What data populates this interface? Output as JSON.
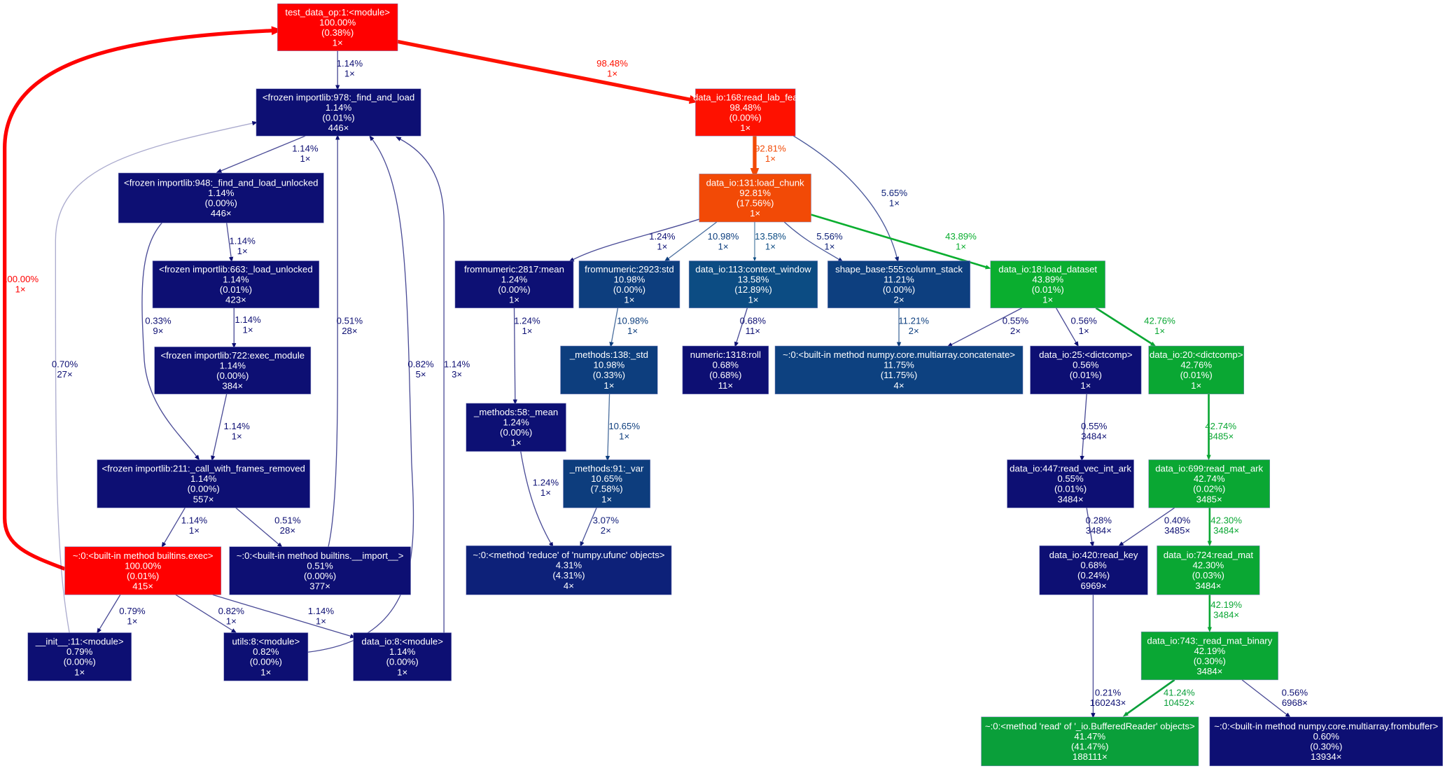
{
  "graph": {
    "nodes": [
      {
        "id": "n1",
        "label": "test_data_op:1:<module>",
        "total": "100.00%",
        "self": "(0.38%)",
        "calls": "1×",
        "color": "#ff0000"
      },
      {
        "id": "n2",
        "label": "<frozen importlib:978:_find_and_load",
        "total": "1.14%",
        "self": "(0.01%)",
        "calls": "446×",
        "color": "#0d0f73"
      },
      {
        "id": "n3",
        "label": "<frozen importlib:948:_find_and_load_unlocked",
        "total": "1.14%",
        "self": "(0.00%)",
        "calls": "446×",
        "color": "#0d0f73"
      },
      {
        "id": "n4",
        "label": "<frozen importlib:663:_load_unlocked",
        "total": "1.14%",
        "self": "(0.01%)",
        "calls": "423×",
        "color": "#0d0f73"
      },
      {
        "id": "n5",
        "label": "<frozen importlib:722:exec_module",
        "total": "1.14%",
        "self": "(0.00%)",
        "calls": "384×",
        "color": "#0d0f73"
      },
      {
        "id": "n6",
        "label": "<frozen importlib:211:_call_with_frames_removed",
        "total": "1.14%",
        "self": "(0.00%)",
        "calls": "557×",
        "color": "#0d0f73"
      },
      {
        "id": "n7",
        "label": "~:0:<built-in method builtins.exec>",
        "total": "100.00%",
        "self": "(0.01%)",
        "calls": "415×",
        "color": "#ff0000"
      },
      {
        "id": "n8",
        "label": "~:0:<built-in method builtins.__import__>",
        "total": "0.51%",
        "self": "(0.00%)",
        "calls": "377×",
        "color": "#0d0f73"
      },
      {
        "id": "n9",
        "label": "__init__:11:<module>",
        "total": "0.79%",
        "self": "(0.00%)",
        "calls": "1×",
        "color": "#0d0f73"
      },
      {
        "id": "n10",
        "label": "utils:8:<module>",
        "total": "0.82%",
        "self": "(0.00%)",
        "calls": "1×",
        "color": "#0d0f73"
      },
      {
        "id": "n11",
        "label": "data_io:8:<module>",
        "total": "1.14%",
        "self": "(0.00%)",
        "calls": "1×",
        "color": "#0d0f73"
      },
      {
        "id": "n12",
        "label": "data_io:168:read_lab_fea",
        "total": "98.48%",
        "self": "(0.00%)",
        "calls": "1×",
        "color": "#fe1100"
      },
      {
        "id": "n13",
        "label": "data_io:131:load_chunk",
        "total": "92.81%",
        "self": "(17.56%)",
        "calls": "1×",
        "color": "#f24a06"
      },
      {
        "id": "n14",
        "label": "fromnumeric:2817:mean",
        "total": "1.24%",
        "self": "(0.00%)",
        "calls": "1×",
        "color": "#0d1074"
      },
      {
        "id": "n15",
        "label": "fromnumeric:2923:std",
        "total": "10.98%",
        "self": "(0.00%)",
        "calls": "1×",
        "color": "#0d3e7e"
      },
      {
        "id": "n16",
        "label": "data_io:113:context_window",
        "total": "13.58%",
        "self": "(12.89%)",
        "calls": "1×",
        "color": "#0c4c83"
      },
      {
        "id": "n17",
        "label": "shape_base:555:column_stack",
        "total": "11.21%",
        "self": "(0.00%)",
        "calls": "2×",
        "color": "#0d3f7f"
      },
      {
        "id": "n18",
        "label": "data_io:18:load_dataset",
        "total": "43.89%",
        "self": "(0.01%)",
        "calls": "1×",
        "color": "#0aae2f"
      },
      {
        "id": "n19",
        "label": "_methods:138:_std",
        "total": "10.98%",
        "self": "(0.33%)",
        "calls": "1×",
        "color": "#0d3e7e"
      },
      {
        "id": "n20",
        "label": "numeric:1318:roll",
        "total": "0.68%",
        "self": "(0.68%)",
        "calls": "11×",
        "color": "#0d0f73"
      },
      {
        "id": "n21",
        "label": "~:0:<built-in method numpy.core.multiarray.concatenate>",
        "total": "11.75%",
        "self": "(11.75%)",
        "calls": "4×",
        "color": "#0d4180"
      },
      {
        "id": "n22",
        "label": "data_io:25:<dictcomp>",
        "total": "0.56%",
        "self": "(0.01%)",
        "calls": "1×",
        "color": "#0d0f73"
      },
      {
        "id": "n23",
        "label": "data_io:20:<dictcomp>",
        "total": "42.76%",
        "self": "(0.01%)",
        "calls": "1×",
        "color": "#0aa733"
      },
      {
        "id": "n24",
        "label": "_methods:58:_mean",
        "total": "1.24%",
        "self": "(0.00%)",
        "calls": "1×",
        "color": "#0d1074"
      },
      {
        "id": "n25",
        "label": "_methods:91:_var",
        "total": "10.65%",
        "self": "(7.58%)",
        "calls": "1×",
        "color": "#0d3d7d"
      },
      {
        "id": "n26",
        "label": "data_io:447:read_vec_int_ark",
        "total": "0.55%",
        "self": "(0.01%)",
        "calls": "3484×",
        "color": "#0d0f73"
      },
      {
        "id": "n27",
        "label": "data_io:699:read_mat_ark",
        "total": "42.74%",
        "self": "(0.02%)",
        "calls": "3485×",
        "color": "#0aa733"
      },
      {
        "id": "n28",
        "label": "~:0:<method 'reduce' of 'numpy.ufunc' objects>",
        "total": "4.31%",
        "self": "(4.31%)",
        "calls": "4×",
        "color": "#0d2179"
      },
      {
        "id": "n29",
        "label": "data_io:420:read_key",
        "total": "0.68%",
        "self": "(0.24%)",
        "calls": "6969×",
        "color": "#0d0f73"
      },
      {
        "id": "n30",
        "label": "data_io:724:read_mat",
        "total": "42.30%",
        "self": "(0.03%)",
        "calls": "3484×",
        "color": "#0aa733"
      },
      {
        "id": "n31",
        "label": "data_io:743:_read_mat_binary",
        "total": "42.19%",
        "self": "(0.30%)",
        "calls": "3484×",
        "color": "#0aa734"
      },
      {
        "id": "n32",
        "label": "~:0:<method 'read' of '_io.BufferedReader' objects>",
        "total": "41.47%",
        "self": "(41.47%)",
        "calls": "188111×",
        "color": "#0a9f3a"
      },
      {
        "id": "n33",
        "label": "~:0:<built-in method numpy.core.multiarray.frombuffer>",
        "total": "0.60%",
        "self": "(0.30%)",
        "calls": "13934×",
        "color": "#0d0f73"
      }
    ],
    "edges": [
      {
        "from": "n1",
        "to": "n2",
        "pct": "1.14%",
        "calls": "1×",
        "color": "#0d0f73"
      },
      {
        "from": "n1",
        "to": "n12",
        "pct": "98.48%",
        "calls": "1×",
        "color": "#fe1100"
      },
      {
        "from": "n2",
        "to": "n3",
        "pct": "1.14%",
        "calls": "1×",
        "color": "#0d0f73"
      },
      {
        "from": "n3",
        "to": "n4",
        "pct": "1.14%",
        "calls": "1×",
        "color": "#0d0f73"
      },
      {
        "from": "n3",
        "to": "n6",
        "pct": "0.33%",
        "calls": "9×",
        "color": "#0d0f73"
      },
      {
        "from": "n4",
        "to": "n5",
        "pct": "1.14%",
        "calls": "1×",
        "color": "#0d0f73"
      },
      {
        "from": "n5",
        "to": "n6",
        "pct": "1.14%",
        "calls": "1×",
        "color": "#0d0f73"
      },
      {
        "from": "n6",
        "to": "n7",
        "pct": "1.14%",
        "calls": "1×",
        "color": "#0d0f73"
      },
      {
        "from": "n6",
        "to": "n8",
        "pct": "0.51%",
        "calls": "28×",
        "color": "#0d0f73"
      },
      {
        "from": "n8",
        "to": "n2",
        "pct": "0.51%",
        "calls": "28×",
        "color": "#0d0f73"
      },
      {
        "from": "n7",
        "to": "n1",
        "pct": "100.00%",
        "calls": "1×",
        "color": "#ff0000"
      },
      {
        "from": "n7",
        "to": "n9",
        "pct": "0.79%",
        "calls": "1×",
        "color": "#0d0f73"
      },
      {
        "from": "n7",
        "to": "n10",
        "pct": "0.82%",
        "calls": "1×",
        "color": "#0d0f73"
      },
      {
        "from": "n7",
        "to": "n11",
        "pct": "1.14%",
        "calls": "1×",
        "color": "#0d0f73"
      },
      {
        "from": "n9",
        "to": "n2",
        "pct": "0.70%",
        "calls": "27×",
        "color": "#0d0f73"
      },
      {
        "from": "n10",
        "to": "n2",
        "pct": "0.82%",
        "calls": "5×",
        "color": "#0d0f73"
      },
      {
        "from": "n11",
        "to": "n2",
        "pct": "1.14%",
        "calls": "3×",
        "color": "#0d0f73"
      },
      {
        "from": "n12",
        "to": "n13",
        "pct": "92.81%",
        "calls": "1×",
        "color": "#f24a06"
      },
      {
        "from": "n12",
        "to": "n17",
        "pct": "5.65%",
        "calls": "1×",
        "color": "#0d2078"
      },
      {
        "from": "n13",
        "to": "n14",
        "pct": "1.24%",
        "calls": "1×",
        "color": "#0d1074"
      },
      {
        "from": "n13",
        "to": "n15",
        "pct": "10.98%",
        "calls": "1×",
        "color": "#0d3e7e"
      },
      {
        "from": "n13",
        "to": "n16",
        "pct": "13.58%",
        "calls": "1×",
        "color": "#0c4c83"
      },
      {
        "from": "n13",
        "to": "n17",
        "pct": "5.56%",
        "calls": "1×",
        "color": "#0d2078"
      },
      {
        "from": "n13",
        "to": "n18",
        "pct": "43.89%",
        "calls": "1×",
        "color": "#0aae2f"
      },
      {
        "from": "n14",
        "to": "n24",
        "pct": "1.24%",
        "calls": "1×",
        "color": "#0d1074"
      },
      {
        "from": "n15",
        "to": "n19",
        "pct": "10.98%",
        "calls": "1×",
        "color": "#0d3e7e"
      },
      {
        "from": "n16",
        "to": "n20",
        "pct": "0.68%",
        "calls": "11×",
        "color": "#0d0f73"
      },
      {
        "from": "n17",
        "to": "n21",
        "pct": "11.21%",
        "calls": "2×",
        "color": "#0d3f7f"
      },
      {
        "from": "n18",
        "to": "n21",
        "pct": "0.55%",
        "calls": "2×",
        "color": "#0d0f73"
      },
      {
        "from": "n18",
        "to": "n22",
        "pct": "0.56%",
        "calls": "1×",
        "color": "#0d0f73"
      },
      {
        "from": "n18",
        "to": "n23",
        "pct": "42.76%",
        "calls": "1×",
        "color": "#0aa733"
      },
      {
        "from": "n19",
        "to": "n25",
        "pct": "10.65%",
        "calls": "1×",
        "color": "#0d3d7d"
      },
      {
        "from": "n24",
        "to": "n28",
        "pct": "1.24%",
        "calls": "1×",
        "color": "#0d1074"
      },
      {
        "from": "n25",
        "to": "n28",
        "pct": "3.07%",
        "calls": "2×",
        "color": "#0d1a77"
      },
      {
        "from": "n22",
        "to": "n26",
        "pct": "0.55%",
        "calls": "3484×",
        "color": "#0d0f73"
      },
      {
        "from": "n23",
        "to": "n27",
        "pct": "42.74%",
        "calls": "3485×",
        "color": "#0aa733"
      },
      {
        "from": "n26",
        "to": "n29",
        "pct": "0.28%",
        "calls": "3484×",
        "color": "#0d0f73"
      },
      {
        "from": "n27",
        "to": "n29",
        "pct": "0.40%",
        "calls": "3485×",
        "color": "#0d0f73"
      },
      {
        "from": "n27",
        "to": "n30",
        "pct": "42.30%",
        "calls": "3484×",
        "color": "#0aa733"
      },
      {
        "from": "n30",
        "to": "n31",
        "pct": "42.19%",
        "calls": "3484×",
        "color": "#0aa734"
      },
      {
        "from": "n29",
        "to": "n32",
        "pct": "0.21%",
        "calls": "160243×",
        "color": "#0d0f73"
      },
      {
        "from": "n31",
        "to": "n32",
        "pct": "41.24%",
        "calls": "10452×",
        "color": "#0a9f3a"
      },
      {
        "from": "n31",
        "to": "n33",
        "pct": "0.56%",
        "calls": "6968×",
        "color": "#0d0f73"
      }
    ]
  }
}
